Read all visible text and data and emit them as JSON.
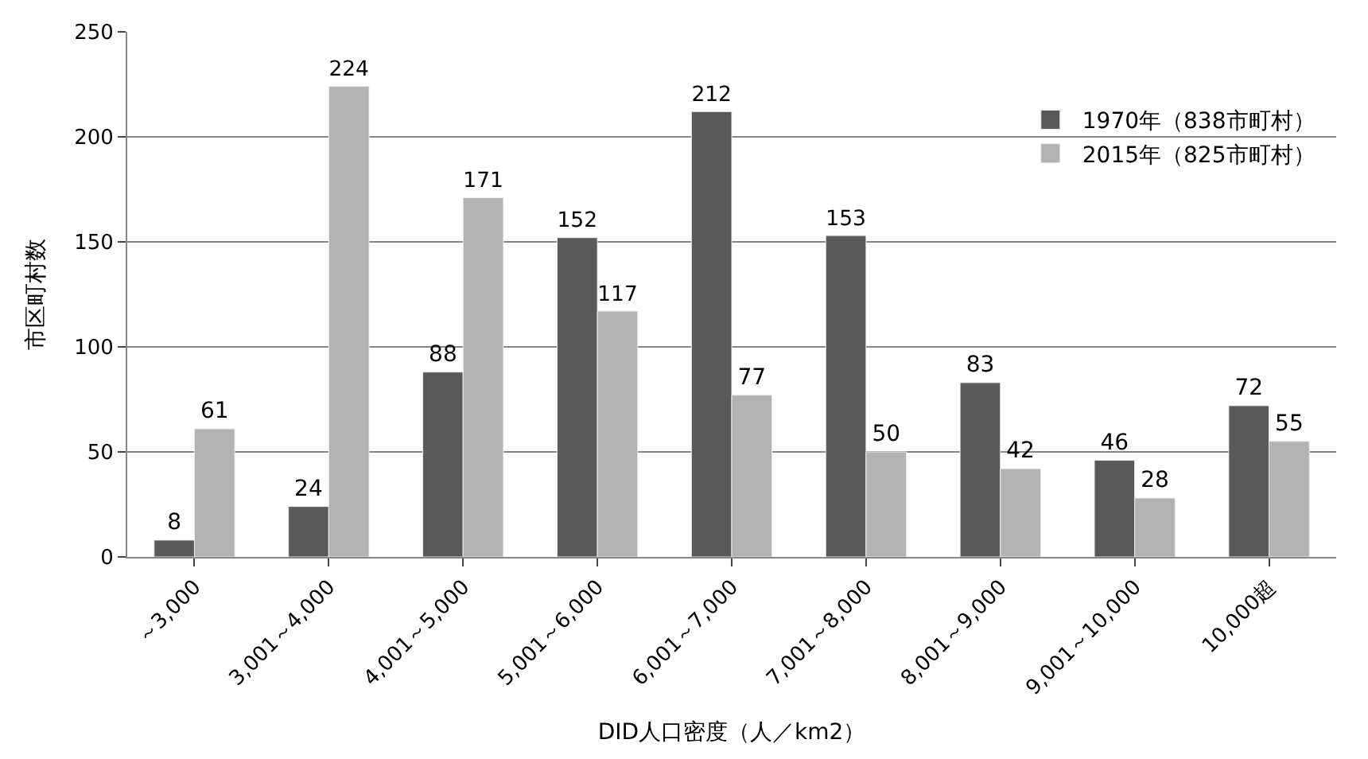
{
  "chart_data": {
    "type": "bar",
    "xlabel": "DID人口密度（人／km2）",
    "ylabel": "市区町村数",
    "categories": [
      "～3,000",
      "3,001～4,000",
      "4,001～5,000",
      "5,001～6,000",
      "6,001～7,000",
      "7,001～8,000",
      "8,001～9,000",
      "9,001～10,000",
      "10,000超"
    ],
    "series": [
      {
        "name": "1970年（838市町村）",
        "color": "#595959",
        "values": [
          8,
          24,
          88,
          152,
          212,
          153,
          83,
          46,
          72
        ]
      },
      {
        "name": "2015年（825市町村）",
        "color": "#b2b2b2",
        "values": [
          61,
          224,
          171,
          117,
          77,
          50,
          42,
          28,
          55
        ]
      }
    ],
    "ylim": [
      0,
      250
    ],
    "yticks": [
      0,
      50,
      100,
      150,
      200,
      250
    ],
    "grid": "y",
    "legend": "right",
    "data_labels": true
  }
}
